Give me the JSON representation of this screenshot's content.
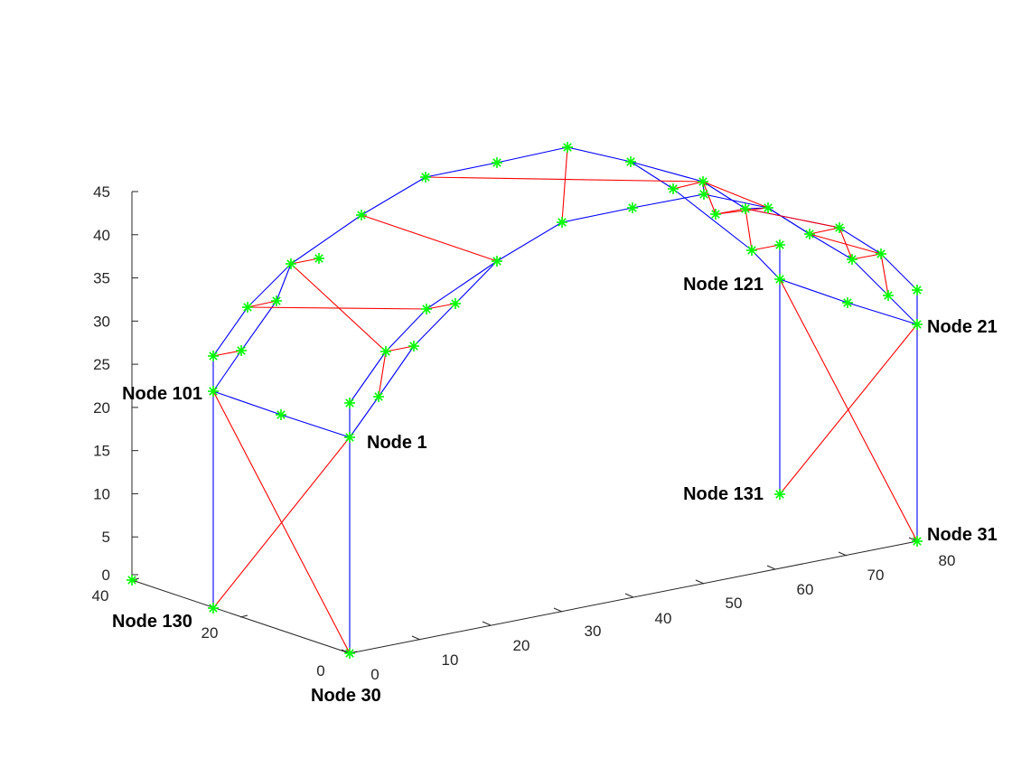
{
  "chart_data": {
    "type": "scatter3d",
    "title": "",
    "xlabel": "",
    "ylabel": "",
    "zlabel": "",
    "colors": {
      "blue_members": "#0000ff",
      "red_members": "#ff0000",
      "node_marker": "#00ff00"
    },
    "axes": {
      "z_ticks": [
        "0",
        "5",
        "10",
        "15",
        "20",
        "25",
        "30",
        "35",
        "40",
        "45"
      ],
      "x_ticks": [
        "0",
        "10",
        "20",
        "30",
        "40",
        "50",
        "60",
        "70",
        "80"
      ],
      "y_ticks": [
        "0",
        "20",
        "40"
      ]
    },
    "labeled_nodes": [
      {
        "id": "n1",
        "label": "Node 1"
      },
      {
        "id": "n21",
        "label": "Node 21"
      },
      {
        "id": "n30",
        "label": "Node 30"
      },
      {
        "id": "n31",
        "label": "Node 31"
      },
      {
        "id": "n101",
        "label": "Node 101"
      },
      {
        "id": "n121",
        "label": "Node 121"
      },
      {
        "id": "n130",
        "label": "Node 130"
      },
      {
        "id": "n131",
        "label": "Node 131"
      }
    ]
  }
}
